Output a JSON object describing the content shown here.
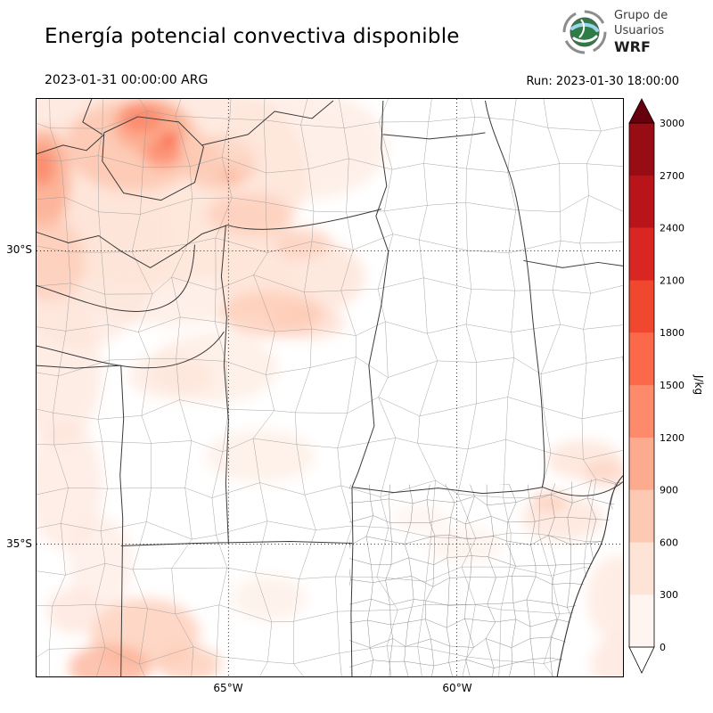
{
  "header": {
    "title": "Energía potencial convectiva disponible",
    "valid_time": "2023-01-31 00:00:00 ARG",
    "run_label": "Run: 2023-01-30 18:00:00",
    "logo": {
      "line1": "Grupo de",
      "line2": "Usuarios",
      "line3": "WRF"
    }
  },
  "map": {
    "lat_ticks": [
      "30°S",
      "35°S"
    ],
    "lon_ticks": [
      "65°W",
      "60°W"
    ]
  },
  "colorbar": {
    "unit": "J/kg",
    "tick_labels": [
      "0",
      "300",
      "600",
      "900",
      "1200",
      "1500",
      "1800",
      "2100",
      "2400",
      "2700",
      "3000"
    ],
    "segment_colors": [
      "#fff5f0",
      "#fee3d7",
      "#fdc9b3",
      "#fcab8e",
      "#fc8a6b",
      "#fb694a",
      "#f0482f",
      "#d92623",
      "#b81419",
      "#980c13"
    ],
    "over_color": "#67000d",
    "under_color": "#ffffff"
  },
  "palette": {
    "l0": "#fef0e7",
    "l1": "#fee3d7",
    "l2": "#fdc9b3",
    "l3": "#fcab8e",
    "l4": "#fc8a6b",
    "l5": "#fb694a"
  }
}
